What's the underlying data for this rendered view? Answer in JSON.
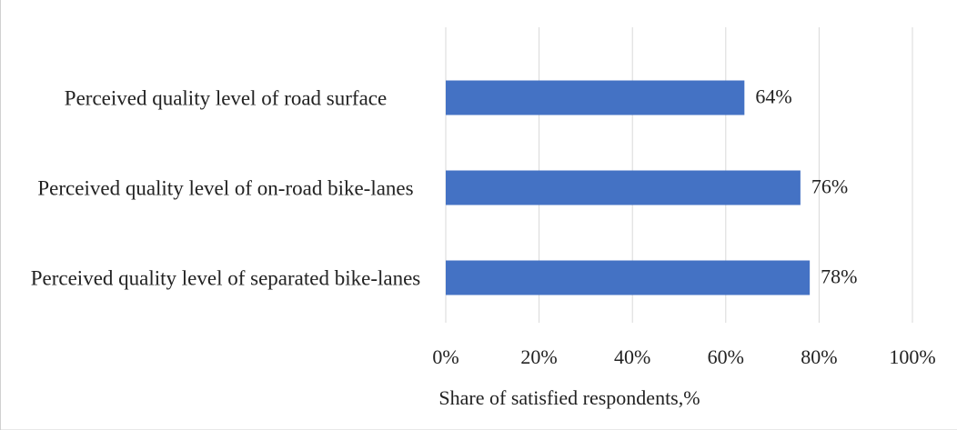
{
  "chart_data": {
    "type": "barh",
    "categories": [
      "Perceived quality level of road surface",
      "Perceived quality level of on-road bike-lanes",
      "Perceived quality level of separated bike-lanes"
    ],
    "values": [
      64,
      76,
      78
    ],
    "value_labels": [
      "64%",
      "76%",
      "78%"
    ],
    "color": "#4472c4",
    "xlabel": "Share of satisfied respondents,%",
    "xlim": [
      0,
      100
    ],
    "xticks": [
      {
        "value": 0,
        "label": "0%"
      },
      {
        "value": 20,
        "label": "20%"
      },
      {
        "value": 40,
        "label": "40%"
      },
      {
        "value": 60,
        "label": "60%"
      },
      {
        "value": 80,
        "label": "80%"
      },
      {
        "value": 100,
        "label": "100%"
      }
    ],
    "grid": true
  }
}
